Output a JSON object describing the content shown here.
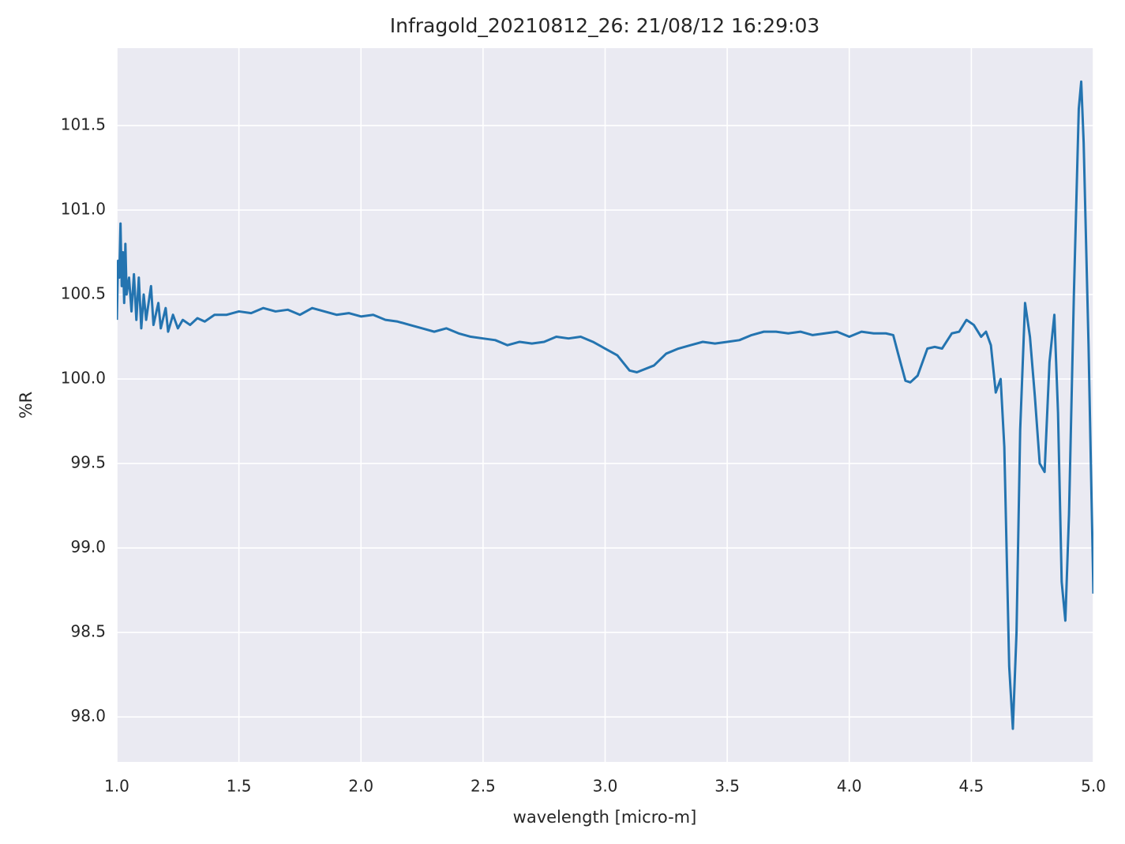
{
  "chart_data": {
    "type": "line",
    "title": "Infragold_20210812_26:  21/08/12 16:29:03",
    "x_label": "wavelength [micro-m]",
    "y_label": "%R",
    "x": [
      1.0,
      1.005,
      1.01,
      1.015,
      1.02,
      1.025,
      1.03,
      1.035,
      1.04,
      1.05,
      1.06,
      1.07,
      1.08,
      1.09,
      1.1,
      1.11,
      1.12,
      1.14,
      1.15,
      1.17,
      1.18,
      1.2,
      1.21,
      1.23,
      1.25,
      1.27,
      1.3,
      1.33,
      1.36,
      1.4,
      1.45,
      1.5,
      1.55,
      1.6,
      1.65,
      1.7,
      1.75,
      1.8,
      1.85,
      1.9,
      1.95,
      2.0,
      2.05,
      2.1,
      2.15,
      2.2,
      2.25,
      2.3,
      2.35,
      2.4,
      2.45,
      2.5,
      2.55,
      2.6,
      2.65,
      2.7,
      2.75,
      2.8,
      2.85,
      2.9,
      2.95,
      3.0,
      3.05,
      3.1,
      3.13,
      3.2,
      3.25,
      3.3,
      3.35,
      3.4,
      3.45,
      3.5,
      3.55,
      3.6,
      3.65,
      3.7,
      3.75,
      3.8,
      3.85,
      3.9,
      3.95,
      4.0,
      4.05,
      4.1,
      4.15,
      4.18,
      4.2,
      4.23,
      4.25,
      4.28,
      4.32,
      4.35,
      4.38,
      4.42,
      4.45,
      4.48,
      4.51,
      4.54,
      4.56,
      4.58,
      4.6,
      4.62,
      4.635,
      4.655,
      4.67,
      4.685,
      4.7,
      4.72,
      4.74,
      4.76,
      4.78,
      4.8,
      4.82,
      4.84,
      4.855,
      4.87,
      4.885,
      4.9,
      4.92,
      4.94,
      4.95,
      4.96,
      4.98,
      5.0
    ],
    "series": [
      {
        "name": "%R",
        "color": "#2474b0",
        "values": [
          100.35,
          100.7,
          100.6,
          100.92,
          100.55,
          100.75,
          100.45,
          100.8,
          100.5,
          100.6,
          100.4,
          100.62,
          100.35,
          100.6,
          100.3,
          100.5,
          100.35,
          100.55,
          100.32,
          100.45,
          100.3,
          100.42,
          100.28,
          100.38,
          100.3,
          100.35,
          100.32,
          100.36,
          100.34,
          100.38,
          100.38,
          100.4,
          100.39,
          100.42,
          100.4,
          100.41,
          100.38,
          100.42,
          100.4,
          100.38,
          100.39,
          100.37,
          100.38,
          100.35,
          100.34,
          100.32,
          100.3,
          100.28,
          100.3,
          100.27,
          100.25,
          100.24,
          100.23,
          100.2,
          100.22,
          100.21,
          100.22,
          100.25,
          100.24,
          100.25,
          100.22,
          100.18,
          100.14,
          100.05,
          100.04,
          100.08,
          100.15,
          100.18,
          100.2,
          100.22,
          100.21,
          100.22,
          100.23,
          100.26,
          100.28,
          100.28,
          100.27,
          100.28,
          100.26,
          100.27,
          100.28,
          100.25,
          100.28,
          100.27,
          100.27,
          100.26,
          100.15,
          99.99,
          99.98,
          100.02,
          100.18,
          100.19,
          100.18,
          100.27,
          100.28,
          100.35,
          100.32,
          100.25,
          100.28,
          100.2,
          99.92,
          100.0,
          99.6,
          98.3,
          97.93,
          98.5,
          99.7,
          100.45,
          100.25,
          99.9,
          99.5,
          99.45,
          100.1,
          100.38,
          99.8,
          98.8,
          98.57,
          99.2,
          100.5,
          101.6,
          101.76,
          101.4,
          100.2,
          98.73
        ]
      }
    ],
    "xlim": [
      1.0,
      5.0
    ],
    "ylim": [
      97.734,
      101.958
    ],
    "xticks": [
      {
        "value": 1.0,
        "label": "1.0"
      },
      1.5,
      {
        "value": 2.0,
        "label": "2.0"
      },
      2.5,
      {
        "value": 3.0,
        "label": "3.0"
      },
      3.5,
      {
        "value": 4.0,
        "label": "4.0"
      },
      4.5,
      {
        "value": 5.0,
        "label": "5.0"
      }
    ],
    "yticks": [
      {
        "value": 98.0,
        "label": "98.0"
      },
      98.5,
      {
        "value": 99.0,
        "label": "99.0"
      },
      99.5,
      {
        "value": 100.0,
        "label": "100.0"
      },
      100.5,
      {
        "value": 101.0,
        "label": "101.0"
      },
      101.5
    ],
    "grid": true
  }
}
